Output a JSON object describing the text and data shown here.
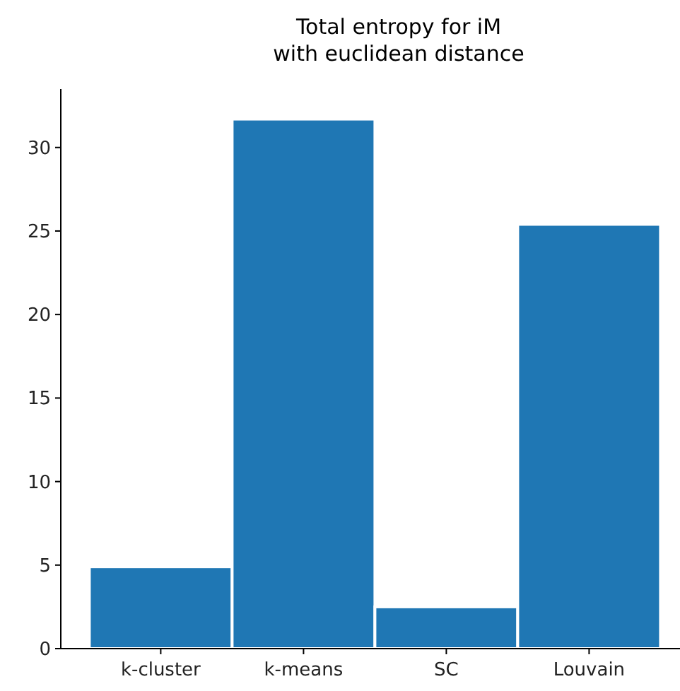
{
  "chart_data": {
    "type": "bar",
    "title": "Total entropy for iM\nwith euclidean distance",
    "categories": [
      "k-cluster",
      "k-means",
      "SC",
      "Louvain"
    ],
    "values": [
      4.9,
      31.7,
      2.5,
      25.4
    ],
    "color": "#1f77b4",
    "ylim": [
      0,
      33.5
    ],
    "yticks": [
      0,
      5,
      10,
      15,
      20,
      25,
      30
    ],
    "grid": false
  }
}
